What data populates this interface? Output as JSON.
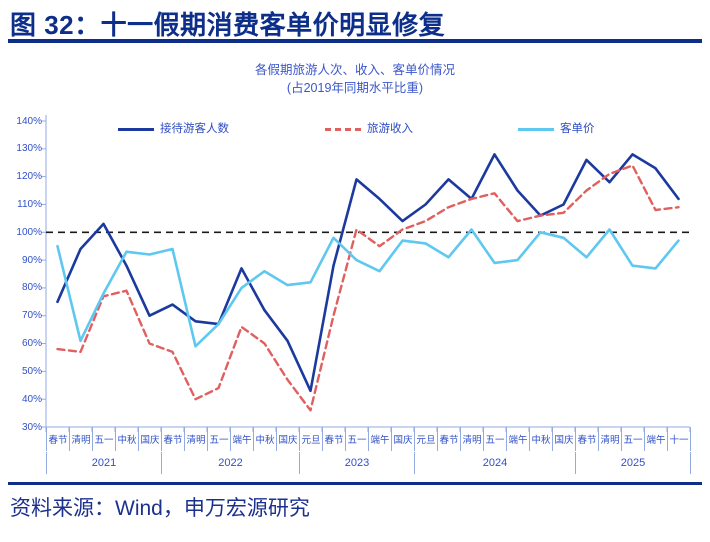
{
  "figure": {
    "title": "图 32：十一假期消费客单价明显修复",
    "source": "资料来源：Wind，申万宏源研究"
  },
  "chart_data": {
    "type": "line",
    "title": "各假期旅游人次、收入、客单价情况",
    "subtitle": "(占2019年同期水平比重)",
    "categories": [
      "春节",
      "清明",
      "五一",
      "中秋",
      "国庆",
      "春节",
      "清明",
      "五一",
      "端午",
      "中秋",
      "国庆",
      "元旦",
      "春节",
      "五一",
      "端午",
      "国庆",
      "元旦",
      "春节",
      "清明",
      "五一",
      "端午",
      "中秋",
      "国庆",
      "春节",
      "清明",
      "五一",
      "端午",
      "十一"
    ],
    "year_groups": [
      {
        "year": "2021",
        "count": 5
      },
      {
        "year": "2022",
        "count": 6
      },
      {
        "year": "2023",
        "count": 5
      },
      {
        "year": "2024",
        "count": 7
      },
      {
        "year": "2025",
        "count": 5
      }
    ],
    "series": [
      {
        "key": "visitors",
        "name": "接待游客人数",
        "color": "#1c3a9e",
        "style": "solid",
        "values": [
          75,
          94,
          103,
          88,
          70,
          74,
          68,
          67,
          87,
          72,
          61,
          43,
          88,
          119,
          112,
          104,
          110,
          119,
          112,
          128,
          115,
          106,
          110,
          126,
          118,
          128,
          123,
          112
        ]
      },
      {
        "key": "revenue",
        "name": "旅游收入",
        "color": "#e05f5f",
        "style": "dashed",
        "values": [
          58,
          57,
          77,
          79,
          60,
          57,
          40,
          44,
          66,
          60,
          47,
          36,
          70,
          101,
          95,
          101,
          104,
          109,
          112,
          114,
          104,
          106,
          107,
          115,
          121,
          124,
          108,
          109
        ]
      },
      {
        "key": "price",
        "name": "客单价",
        "color": "#5ec8f0",
        "style": "solid",
        "values": [
          95,
          61,
          78,
          93,
          92,
          94,
          59,
          67,
          80,
          86,
          81,
          82,
          98,
          90,
          86,
          97,
          96,
          91,
          101,
          89,
          90,
          100,
          98,
          91,
          101,
          88,
          87,
          97
        ]
      }
    ],
    "ylim": [
      30,
      140
    ],
    "y_ticks": [
      140,
      130,
      120,
      110,
      100,
      90,
      80,
      70,
      60,
      50,
      40,
      30
    ],
    "y_tick_suffix": "%",
    "reference_line": 100,
    "grid": "off",
    "legend_position": "top"
  },
  "colors": {
    "title_navy": "#0d2f8a",
    "axis_text_blue": "#3050c8",
    "axis_line_blue": "#93abe2",
    "reference_black": "#1a1a1a"
  }
}
